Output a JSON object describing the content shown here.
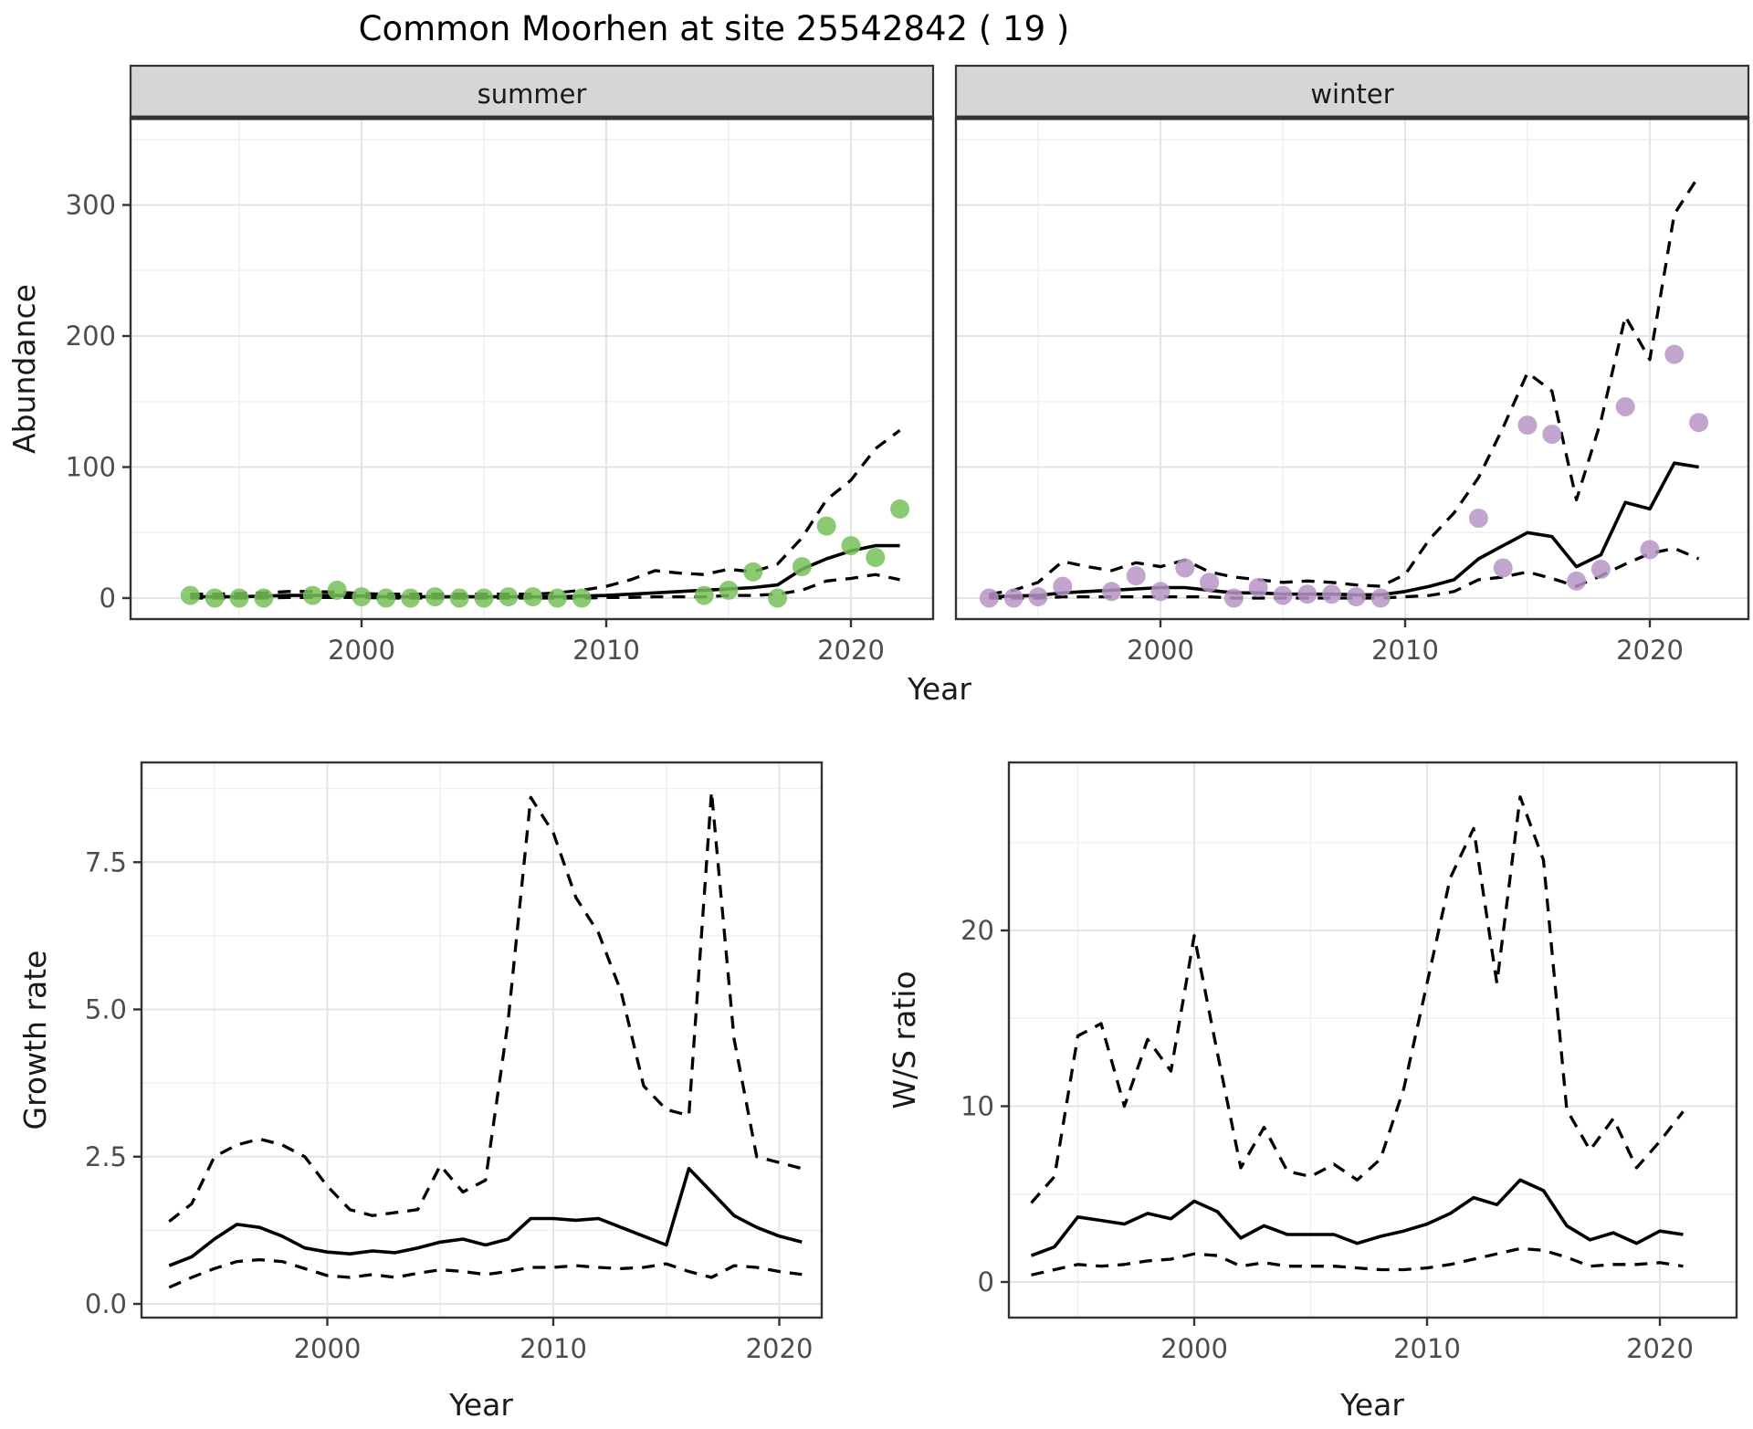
{
  "title": "Common Moorhen at site 25542842 ( 19 )",
  "labels": {
    "year": "Year",
    "abundance": "Abundance",
    "growth_rate": "Growth rate",
    "ws_ratio": "W/S ratio"
  },
  "colors": {
    "summer_point": "#77C15A",
    "winter_point": "#B795C6",
    "line": "#000000",
    "strip_bg": "#D6D6D6",
    "strip_border": "#333333",
    "panel_border": "#333333",
    "grid_major": "#E4E4E4",
    "grid_minor": "#F0F0F0",
    "tick_text": "#4D4D4D"
  },
  "chart_data": [
    {
      "id": "abundance-summer",
      "type": "line",
      "facet_label": "summer",
      "xlabel": "Year",
      "ylabel": "Abundance",
      "ylim": [
        -16,
        366
      ],
      "x_ticks": {
        "values": [
          2000,
          2010,
          2020
        ],
        "labels": [
          "2000",
          "2010",
          "2020"
        ],
        "minor": [
          1995,
          2005,
          2015
        ]
      },
      "y_ticks": {
        "values": [
          0,
          100,
          200,
          300
        ],
        "labels": [
          "0",
          "100",
          "200",
          "300"
        ],
        "minor": [
          50,
          150,
          250,
          350
        ]
      },
      "line_years": [
        1993,
        1994,
        1995,
        1996,
        1997,
        1998,
        1999,
        2000,
        2001,
        2002,
        2003,
        2004,
        2005,
        2006,
        2007,
        2008,
        2009,
        2010,
        2011,
        2012,
        2013,
        2014,
        2015,
        2016,
        2017,
        2018,
        2019,
        2020,
        2021,
        2022
      ],
      "series": [
        {
          "name": "mean",
          "style": "solid",
          "values": [
            1,
            1,
            1,
            1.5,
            2,
            2,
            2,
            1.5,
            1,
            1,
            1,
            1,
            1,
            1,
            1,
            1,
            1.5,
            2,
            3,
            4,
            5,
            6,
            7,
            8,
            10,
            22,
            30,
            36,
            40,
            40
          ]
        },
        {
          "name": "upper-ci",
          "style": "dashed",
          "values": [
            3,
            3,
            3.5,
            4,
            5,
            5,
            4.5,
            3.5,
            3,
            3,
            3,
            3,
            3,
            3,
            3,
            4,
            6,
            9,
            14,
            21,
            19,
            18,
            22,
            20,
            26,
            46,
            75,
            90,
            114,
            128
          ]
        },
        {
          "name": "lower-ci",
          "style": "dashed",
          "values": [
            0,
            0,
            0,
            0,
            0.5,
            0.5,
            0.5,
            0.5,
            0,
            0,
            0,
            0,
            0,
            0,
            0,
            0,
            0,
            0.5,
            0.5,
            1,
            1,
            1,
            2,
            2,
            3,
            6,
            13,
            15,
            18,
            14
          ]
        }
      ],
      "points": {
        "color_key": "summer_point",
        "years": [
          1993,
          1994,
          1995,
          1996,
          1998,
          1999,
          2000,
          2001,
          2002,
          2003,
          2004,
          2005,
          2006,
          2007,
          2008,
          2009,
          2014,
          2015,
          2016,
          2017,
          2018,
          2019,
          2020,
          2021,
          2022
        ],
        "values": [
          2,
          0,
          0,
          0,
          2,
          6,
          1,
          0,
          0,
          1,
          0,
          0,
          1,
          1,
          0,
          0,
          2,
          6,
          20,
          0,
          24,
          55,
          40,
          31,
          68
        ]
      }
    },
    {
      "id": "abundance-winter",
      "type": "line",
      "facet_label": "winter",
      "xlabel": "Year",
      "ylabel": "Abundance",
      "ylim": [
        -16,
        366
      ],
      "x_ticks": {
        "values": [
          2000,
          2010,
          2020
        ],
        "labels": [
          "2000",
          "2010",
          "2020"
        ],
        "minor": [
          1995,
          2005,
          2015
        ]
      },
      "y_ticks": {
        "values": [
          0,
          100,
          200,
          300
        ],
        "labels": [
          "0",
          "100",
          "200",
          "300"
        ],
        "minor": [
          50,
          150,
          250,
          350
        ]
      },
      "line_years": [
        1993,
        1994,
        1995,
        1996,
        1997,
        1998,
        1999,
        2000,
        2001,
        2002,
        2003,
        2004,
        2005,
        2006,
        2007,
        2008,
        2009,
        2010,
        2011,
        2012,
        2013,
        2014,
        2015,
        2016,
        2017,
        2018,
        2019,
        2020,
        2021,
        2022
      ],
      "series": [
        {
          "name": "mean",
          "style": "solid",
          "values": [
            1,
            1.5,
            2,
            4,
            5,
            6,
            7,
            8,
            8,
            6,
            4,
            4,
            3,
            3,
            3,
            2.5,
            2.5,
            5,
            9,
            14,
            30,
            40,
            50,
            47,
            24,
            33,
            73,
            68,
            103,
            100
          ]
        },
        {
          "name": "upper-ci",
          "style": "dashed",
          "values": [
            3,
            6,
            12,
            28,
            24,
            21,
            27,
            24,
            29,
            20,
            16,
            14,
            12,
            13,
            12,
            10,
            9,
            18,
            45,
            65,
            92,
            130,
            172,
            158,
            75,
            135,
            215,
            182,
            293,
            322
          ]
        },
        {
          "name": "lower-ci",
          "style": "dashed",
          "values": [
            0,
            0,
            0,
            1,
            1,
            1,
            1,
            1,
            1,
            1,
            0,
            0,
            0,
            0,
            0,
            0,
            0,
            1,
            2,
            5,
            14,
            16,
            20,
            15,
            9,
            17,
            26,
            34,
            38,
            30
          ]
        }
      ],
      "points": {
        "color_key": "winter_point",
        "years": [
          1993,
          1994,
          1995,
          1996,
          1998,
          1999,
          2000,
          2001,
          2002,
          2003,
          2004,
          2005,
          2006,
          2007,
          2008,
          2009,
          2013,
          2014,
          2015,
          2016,
          2017,
          2018,
          2019,
          2020,
          2021,
          2022
        ],
        "values": [
          0,
          0,
          1,
          9,
          5,
          17,
          5,
          23,
          12,
          0,
          8,
          2,
          3,
          3,
          1,
          0,
          61,
          23,
          132,
          125,
          13,
          22,
          146,
          37,
          186,
          134
        ]
      }
    },
    {
      "id": "growth-rate",
      "type": "line",
      "facet_label": null,
      "xlabel": "Year",
      "ylabel": "Growth rate",
      "ylim": [
        -0.2,
        9.2
      ],
      "x_ticks": {
        "values": [
          2000,
          2010,
          2020
        ],
        "labels": [
          "2000",
          "2010",
          "2020"
        ],
        "minor": [
          1995,
          2005,
          2015
        ]
      },
      "y_ticks": {
        "values": [
          0,
          2.5,
          5,
          7.5
        ],
        "labels": [
          "0.0",
          "2.5",
          "5.0",
          "7.5"
        ],
        "minor": [
          1.25,
          3.75,
          6.25,
          8.75
        ]
      },
      "line_years": [
        1993,
        1994,
        1995,
        1996,
        1997,
        1998,
        1999,
        2000,
        2001,
        2002,
        2003,
        2004,
        2005,
        2006,
        2007,
        2008,
        2009,
        2010,
        2011,
        2012,
        2013,
        2014,
        2015,
        2016,
        2017,
        2018,
        2019,
        2020,
        2021
      ],
      "series": [
        {
          "name": "mean",
          "style": "solid",
          "values": [
            0.65,
            0.8,
            1.1,
            1.35,
            1.3,
            1.15,
            0.95,
            0.88,
            0.85,
            0.9,
            0.87,
            0.95,
            1.05,
            1.1,
            1.0,
            1.1,
            1.45,
            1.45,
            1.42,
            1.45,
            1.3,
            1.15,
            1.0,
            2.3,
            1.9,
            1.5,
            1.3,
            1.15,
            1.05
          ]
        },
        {
          "name": "upper-ci",
          "style": "dashed",
          "values": [
            1.4,
            1.7,
            2.5,
            2.7,
            2.8,
            2.7,
            2.5,
            2.0,
            1.6,
            1.5,
            1.55,
            1.6,
            2.35,
            1.9,
            2.1,
            4.8,
            8.6,
            8.0,
            6.9,
            6.3,
            5.3,
            3.7,
            3.3,
            3.2,
            8.7,
            4.5,
            2.5,
            2.4,
            2.3
          ]
        },
        {
          "name": "lower-ci",
          "style": "dashed",
          "values": [
            0.28,
            0.45,
            0.6,
            0.72,
            0.75,
            0.72,
            0.6,
            0.48,
            0.45,
            0.5,
            0.45,
            0.52,
            0.58,
            0.55,
            0.5,
            0.55,
            0.62,
            0.62,
            0.65,
            0.62,
            0.6,
            0.62,
            0.68,
            0.55,
            0.45,
            0.65,
            0.62,
            0.55,
            0.5
          ]
        }
      ],
      "points": null
    },
    {
      "id": "ws-ratio",
      "type": "line",
      "facet_label": null,
      "xlabel": "Year",
      "ylabel": "W/S ratio",
      "ylim": [
        -1,
        29.6
      ],
      "x_ticks": {
        "values": [
          2000,
          2010,
          2020
        ],
        "labels": [
          "2000",
          "2010",
          "2020"
        ],
        "minor": [
          1995,
          2005,
          2015
        ]
      },
      "y_ticks": {
        "values": [
          0,
          10,
          20
        ],
        "labels": [
          "0",
          "10",
          "20"
        ],
        "minor": [
          5,
          15,
          25
        ]
      },
      "line_years": [
        1993,
        1994,
        1995,
        1996,
        1997,
        1998,
        1999,
        2000,
        2001,
        2002,
        2003,
        2004,
        2005,
        2006,
        2007,
        2008,
        2009,
        2010,
        2011,
        2012,
        2013,
        2014,
        2015,
        2016,
        2017,
        2018,
        2019,
        2020,
        2021
      ],
      "series": [
        {
          "name": "mean",
          "style": "solid",
          "values": [
            1.5,
            2.0,
            3.7,
            3.5,
            3.3,
            3.9,
            3.6,
            4.6,
            4.0,
            2.5,
            3.2,
            2.7,
            2.7,
            2.7,
            2.2,
            2.6,
            2.9,
            3.3,
            3.9,
            4.8,
            4.4,
            5.8,
            5.2,
            3.2,
            2.4,
            2.8,
            2.2,
            2.9,
            2.7
          ]
        },
        {
          "name": "upper-ci",
          "style": "dashed",
          "values": [
            4.5,
            6.0,
            14.0,
            14.7,
            10.0,
            13.8,
            12.0,
            19.7,
            13.0,
            6.5,
            8.8,
            6.3,
            6.0,
            6.7,
            5.8,
            7.0,
            11.0,
            17.0,
            23.0,
            25.8,
            17.0,
            27.6,
            24.0,
            9.8,
            7.5,
            9.3,
            6.5,
            8.0,
            9.7
          ]
        },
        {
          "name": "lower-ci",
          "style": "dashed",
          "values": [
            0.4,
            0.7,
            1.0,
            0.9,
            1.0,
            1.2,
            1.3,
            1.6,
            1.5,
            0.9,
            1.1,
            0.9,
            0.9,
            0.9,
            0.8,
            0.7,
            0.7,
            0.8,
            1.0,
            1.3,
            1.6,
            1.9,
            1.8,
            1.4,
            0.9,
            1.0,
            1.0,
            1.1,
            0.9
          ]
        }
      ],
      "points": null
    }
  ]
}
